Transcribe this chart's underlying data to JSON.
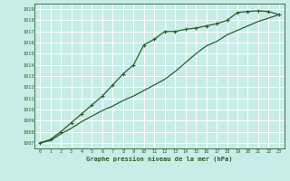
{
  "bg_color": "#c8ede8",
  "grid_color": "#ffffff",
  "line_color": "#2a5c2a",
  "x_label": "Graphe pression niveau de la mer (hPa)",
  "xlim": [
    -0.5,
    23.5
  ],
  "ylim": [
    1006.5,
    1019.5
  ],
  "yticks": [
    1007,
    1008,
    1009,
    1010,
    1011,
    1012,
    1013,
    1014,
    1015,
    1016,
    1017,
    1018,
    1019
  ],
  "xticks": [
    0,
    1,
    2,
    3,
    4,
    5,
    6,
    7,
    8,
    9,
    10,
    11,
    12,
    13,
    14,
    15,
    16,
    17,
    18,
    19,
    20,
    21,
    22,
    23
  ],
  "series1_x": [
    0,
    1,
    2,
    3,
    4,
    5,
    6,
    7,
    8,
    9,
    10,
    11,
    12,
    13,
    14,
    15,
    16,
    17,
    18,
    19,
    20,
    21,
    22,
    23
  ],
  "series1_y": [
    1007.0,
    1007.3,
    1008.0,
    1008.8,
    1009.6,
    1010.4,
    1011.2,
    1012.2,
    1013.2,
    1014.0,
    1015.8,
    1016.3,
    1017.0,
    1017.0,
    1017.2,
    1017.3,
    1017.5,
    1017.7,
    1018.0,
    1018.7,
    1018.8,
    1018.85,
    1018.8,
    1018.5
  ],
  "series2_x": [
    0,
    1,
    2,
    3,
    4,
    5,
    6,
    7,
    8,
    9,
    10,
    11,
    12,
    13,
    14,
    15,
    16,
    17,
    18,
    19,
    20,
    21,
    22,
    23
  ],
  "series2_y": [
    1007.0,
    1007.2,
    1007.8,
    1008.3,
    1008.9,
    1009.4,
    1009.9,
    1010.3,
    1010.8,
    1011.2,
    1011.7,
    1012.2,
    1012.7,
    1013.4,
    1014.2,
    1015.0,
    1015.7,
    1016.1,
    1016.7,
    1017.1,
    1017.5,
    1017.9,
    1018.2,
    1018.5
  ]
}
